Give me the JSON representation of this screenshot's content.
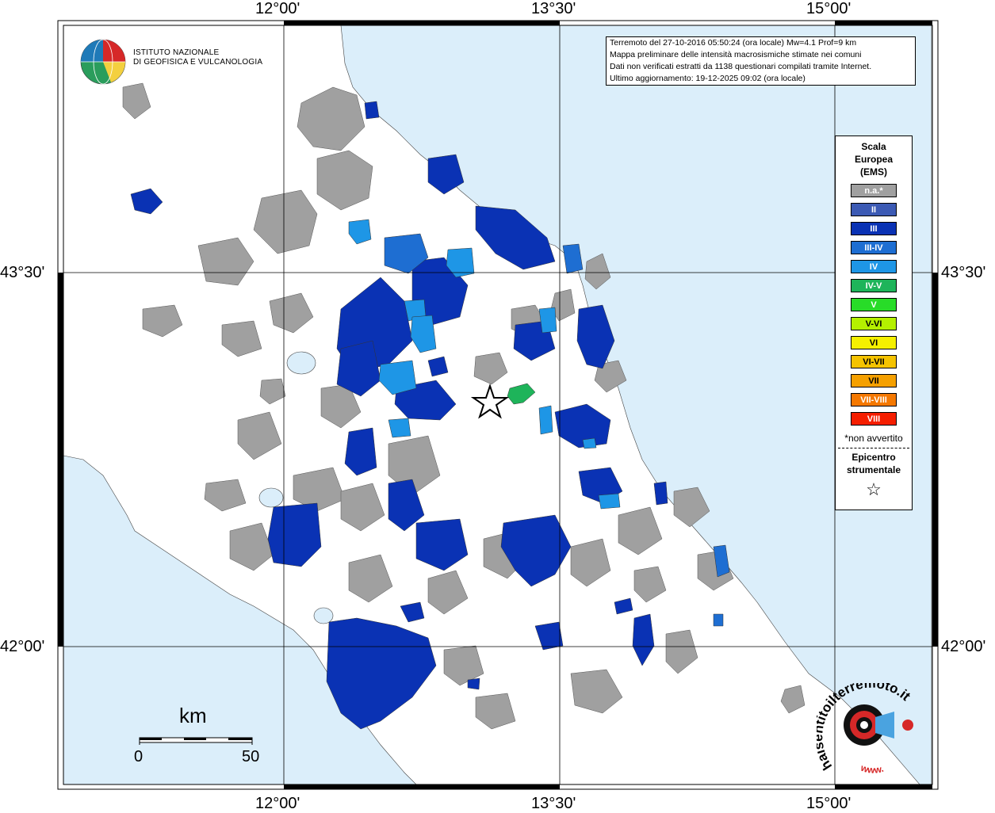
{
  "coords": {
    "lon": [
      "12°00'",
      "13°30'",
      "15°00'"
    ],
    "lat": [
      "43°30'",
      "42°00'"
    ]
  },
  "institute": {
    "line1": "ISTITUTO NAZIONALE",
    "line2": "DI GEOFISICA E VULCANOLOGIA"
  },
  "info": {
    "line1": "Terremoto del 27-10-2016 05:50:24 (ora locale) Mw=4.1 Prof=9 km",
    "line2": "Mappa preliminare delle intensità macrosismiche stimate nei comuni",
    "line3": "Dati non verificati estratti da 1138 questionari compilati tramite Internet.",
    "line4": "Ultimo aggiornamento: 19-12-2025 09:02 (ora locale)"
  },
  "legend": {
    "title1": "Scala",
    "title2": "Europea",
    "title3": "(EMS)",
    "classes": [
      {
        "label": "n.a.*",
        "color": "#a0a0a0"
      },
      {
        "label": "II",
        "color": "#3c5ab4"
      },
      {
        "label": "III",
        "color": "#0a32b4"
      },
      {
        "label": "III-IV",
        "color": "#1e6ed2"
      },
      {
        "label": "IV",
        "color": "#1e96e6"
      },
      {
        "label": "IV-V",
        "color": "#1eb45a"
      },
      {
        "label": "V",
        "color": "#28dc28"
      },
      {
        "label": "V-VI",
        "color": "#b4f000"
      },
      {
        "label": "VI",
        "color": "#f5f000"
      },
      {
        "label": "VI-VII",
        "color": "#f5c300"
      },
      {
        "label": "VII",
        "color": "#f5a000"
      },
      {
        "label": "VII-VIII",
        "color": "#f57800"
      },
      {
        "label": "VIII",
        "color": "#f51e00"
      }
    ],
    "note": "*non avvertito",
    "epi1": "Epicentro",
    "epi2": "strumentale"
  },
  "scalebar": {
    "unit": "km",
    "min": "0",
    "max": "50"
  },
  "logo": {
    "text": "haisentitoilterremoto.it",
    "url": "www."
  }
}
